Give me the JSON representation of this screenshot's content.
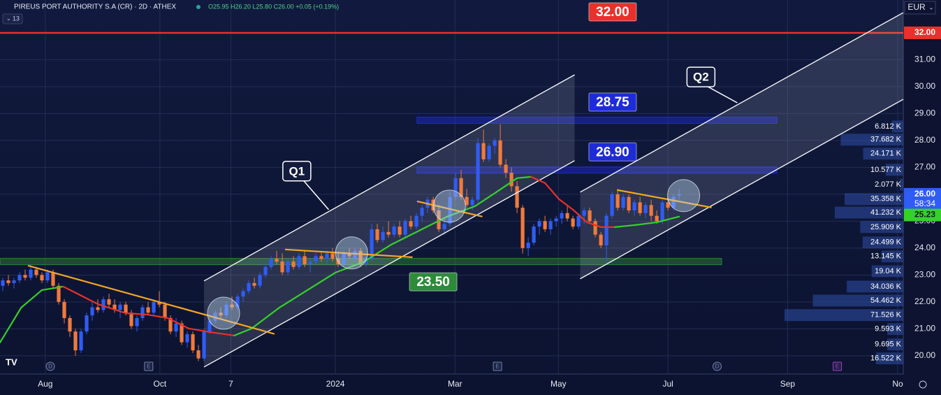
{
  "chart_data": {
    "type": "candlestick",
    "title": "PIREUS PORT AUTHORITY S.A (CR) · 2D · ATHEX",
    "ohlc_text": "O25.95 H26.20 L25.80 C26.00 +0.05 (+0.19%)",
    "indicator_count": "13",
    "currency": "EUR",
    "up_color": "#2f5cf5",
    "down_color": "#f07a3c",
    "grid": true,
    "xlim": [
      -0.5,
      161.1
    ],
    "xticks": [
      {
        "value": 7.6,
        "label": "Aug"
      },
      {
        "value": 28.1,
        "label": "Oct"
      },
      {
        "value": 40.8,
        "label": "7"
      },
      {
        "value": 59.5,
        "label": "2024"
      },
      {
        "value": 80.9,
        "label": "Mar"
      },
      {
        "value": 99.4,
        "label": "May"
      },
      {
        "value": 119,
        "label": "Jul"
      },
      {
        "value": 140.4,
        "label": "Sep"
      },
      {
        "value": 160.1,
        "label": "No"
      }
    ],
    "ylim": [
      19.32,
      33.22
    ],
    "yticks": [
      {
        "value": 20,
        "label": "20.00"
      },
      {
        "value": 21,
        "label": "21.00"
      },
      {
        "value": 22,
        "label": "22.00"
      },
      {
        "value": 23,
        "label": "23.00"
      },
      {
        "value": 24,
        "label": "24.00"
      },
      {
        "value": 25,
        "label": "25.00"
      },
      {
        "value": 26,
        "label": "26.00"
      },
      {
        "value": 27,
        "label": "27.00"
      },
      {
        "value": 28,
        "label": "28.00"
      },
      {
        "value": 29,
        "label": "29.00"
      },
      {
        "value": 30,
        "label": "30.00"
      },
      {
        "value": 31,
        "label": "31.00"
      },
      {
        "value": 32,
        "label": "32.00"
      }
    ],
    "candles": [
      [
        22.6,
        22.9,
        22.4,
        22.8
      ],
      [
        22.8,
        23.0,
        22.6,
        22.7
      ],
      [
        22.7,
        22.9,
        22.5,
        22.8
      ],
      [
        22.8,
        23.1,
        22.7,
        23.0
      ],
      [
        23.0,
        23.2,
        22.8,
        22.9
      ],
      [
        22.9,
        23.4,
        22.8,
        23.2
      ],
      [
        23.2,
        23.3,
        22.9,
        23.0
      ],
      [
        23.0,
        23.1,
        22.7,
        22.8
      ],
      [
        22.8,
        23.2,
        22.7,
        23.1
      ],
      [
        23.1,
        23.2,
        22.5,
        22.6
      ],
      [
        22.6,
        22.7,
        21.9,
        22.0
      ],
      [
        22.0,
        22.1,
        21.2,
        21.4
      ],
      [
        21.4,
        21.5,
        20.7,
        20.9
      ],
      [
        20.9,
        21.0,
        20.0,
        20.2
      ],
      [
        20.2,
        21.0,
        20.1,
        20.9
      ],
      [
        20.9,
        21.6,
        20.8,
        21.5
      ],
      [
        21.5,
        22.0,
        21.3,
        21.8
      ],
      [
        21.8,
        22.1,
        21.6,
        21.7
      ],
      [
        21.7,
        22.2,
        21.6,
        22.1
      ],
      [
        22.1,
        22.3,
        21.8,
        21.9
      ],
      [
        21.9,
        22.1,
        21.6,
        21.7
      ],
      [
        21.7,
        22.0,
        21.4,
        21.9
      ],
      [
        21.9,
        22.0,
        21.5,
        21.6
      ],
      [
        21.6,
        21.7,
        21.0,
        21.1
      ],
      [
        21.1,
        21.5,
        20.9,
        21.4
      ],
      [
        21.4,
        21.9,
        21.3,
        21.8
      ],
      [
        21.8,
        22.0,
        21.5,
        21.6
      ],
      [
        21.6,
        22.1,
        21.5,
        22.0
      ],
      [
        22.0,
        22.4,
        21.8,
        21.9
      ],
      [
        21.9,
        22.0,
        21.3,
        21.4
      ],
      [
        21.4,
        21.5,
        20.8,
        20.9
      ],
      [
        20.9,
        21.4,
        20.7,
        21.2
      ],
      [
        21.2,
        21.3,
        20.4,
        20.5
      ],
      [
        20.5,
        20.9,
        20.3,
        20.8
      ],
      [
        20.8,
        20.9,
        20.1,
        20.2
      ],
      [
        20.2,
        20.4,
        19.8,
        19.9
      ],
      [
        19.9,
        21.0,
        19.8,
        20.9
      ],
      [
        20.9,
        21.5,
        20.8,
        21.3
      ],
      [
        21.3,
        21.7,
        21.2,
        21.6
      ],
      [
        21.6,
        21.8,
        21.4,
        21.5
      ],
      [
        21.5,
        22.0,
        21.4,
        21.9
      ],
      [
        21.9,
        22.2,
        21.7,
        21.8
      ],
      [
        21.8,
        22.3,
        21.7,
        22.2
      ],
      [
        22.2,
        22.5,
        22.0,
        22.4
      ],
      [
        22.4,
        22.8,
        22.3,
        22.7
      ],
      [
        22.7,
        22.9,
        22.5,
        22.6
      ],
      [
        22.6,
        23.1,
        22.5,
        23.0
      ],
      [
        23.0,
        23.4,
        22.9,
        23.3
      ],
      [
        23.3,
        23.7,
        23.2,
        23.6
      ],
      [
        23.6,
        23.9,
        23.4,
        23.5
      ],
      [
        23.5,
        23.8,
        23.0,
        23.1
      ],
      [
        23.1,
        23.6,
        23.0,
        23.5
      ],
      [
        23.5,
        23.7,
        23.2,
        23.3
      ],
      [
        23.3,
        23.8,
        23.2,
        23.7
      ],
      [
        23.7,
        23.9,
        23.3,
        23.4
      ],
      [
        23.4,
        23.6,
        23.1,
        23.5
      ],
      [
        23.5,
        23.8,
        23.4,
        23.7
      ],
      [
        23.7,
        23.9,
        23.5,
        23.6
      ],
      [
        23.6,
        23.9,
        23.4,
        23.8
      ],
      [
        23.8,
        24.0,
        23.5,
        23.6
      ],
      [
        23.6,
        23.8,
        23.3,
        23.4
      ],
      [
        23.4,
        23.9,
        23.3,
        23.8
      ],
      [
        23.8,
        24.0,
        23.6,
        23.7
      ],
      [
        23.6,
        24.0,
        23.5,
        23.9
      ],
      [
        23.9,
        24.0,
        23.3,
        23.4
      ],
      [
        23.4,
        23.7,
        23.3,
        23.6
      ],
      [
        23.6,
        24.9,
        23.5,
        24.7
      ],
      [
        24.7,
        24.9,
        24.2,
        24.3
      ],
      [
        24.3,
        24.8,
        24.2,
        24.6
      ],
      [
        24.6,
        25.0,
        24.4,
        24.5
      ],
      [
        24.5,
        24.9,
        24.4,
        24.8
      ],
      [
        24.8,
        25.0,
        24.4,
        24.5
      ],
      [
        24.5,
        25.1,
        24.4,
        25.0
      ],
      [
        25.0,
        25.2,
        24.7,
        24.8
      ],
      [
        24.8,
        25.3,
        24.7,
        25.2
      ],
      [
        25.2,
        25.6,
        25.0,
        25.5
      ],
      [
        25.5,
        25.9,
        25.3,
        25.8
      ],
      [
        25.8,
        25.9,
        25.3,
        25.4
      ],
      [
        25.4,
        25.6,
        24.6,
        24.7
      ],
      [
        24.7,
        25.1,
        24.5,
        24.9
      ],
      [
        24.9,
        26.1,
        24.8,
        25.9
      ],
      [
        25.9,
        26.8,
        25.8,
        26.6
      ],
      [
        26.6,
        26.9,
        25.8,
        25.9
      ],
      [
        25.9,
        26.2,
        25.5,
        25.6
      ],
      [
        25.6,
        25.9,
        25.4,
        25.8
      ],
      [
        25.8,
        28.1,
        25.7,
        27.9
      ],
      [
        27.9,
        28.4,
        27.2,
        27.3
      ],
      [
        27.3,
        27.9,
        27.2,
        27.8
      ],
      [
        27.8,
        28.1,
        27.5,
        28.0
      ],
      [
        28.0,
        28.6,
        27.0,
        27.1
      ],
      [
        27.1,
        27.3,
        26.6,
        26.8
      ],
      [
        26.8,
        27.0,
        26.1,
        26.3
      ],
      [
        26.3,
        26.5,
        25.3,
        25.5
      ],
      [
        25.5,
        25.6,
        23.8,
        24.0
      ],
      [
        24.0,
        24.4,
        23.7,
        24.2
      ],
      [
        24.2,
        24.9,
        24.1,
        24.8
      ],
      [
        24.8,
        25.1,
        24.5,
        25.0
      ],
      [
        25.0,
        25.2,
        24.6,
        24.7
      ],
      [
        24.7,
        25.1,
        24.5,
        25.0
      ],
      [
        25.0,
        25.2,
        24.8,
        25.1
      ],
      [
        25.1,
        25.4,
        24.9,
        25.3
      ],
      [
        25.3,
        25.6,
        25.0,
        25.1
      ],
      [
        25.1,
        25.2,
        24.7,
        24.8
      ],
      [
        24.8,
        25.3,
        24.7,
        25.2
      ],
      [
        25.2,
        25.5,
        24.9,
        25.4
      ],
      [
        25.4,
        25.5,
        24.9,
        25.0
      ],
      [
        25.0,
        25.1,
        24.4,
        24.5
      ],
      [
        24.5,
        24.6,
        24.0,
        24.1
      ],
      [
        24.1,
        25.3,
        23.5,
        25.2
      ],
      [
        25.2,
        26.1,
        25.1,
        26.0
      ],
      [
        26.0,
        26.2,
        25.4,
        25.5
      ],
      [
        25.5,
        26.0,
        25.4,
        25.9
      ],
      [
        25.9,
        26.0,
        25.3,
        25.4
      ],
      [
        25.4,
        25.8,
        25.2,
        25.7
      ],
      [
        25.7,
        25.9,
        25.2,
        25.3
      ],
      [
        25.3,
        25.7,
        25.1,
        25.6
      ],
      [
        25.6,
        25.8,
        25.0,
        25.2
      ],
      [
        25.2,
        25.4,
        24.9,
        25.0
      ],
      [
        25.0,
        25.8,
        24.9,
        25.7
      ],
      [
        25.7,
        25.9,
        25.4,
        25.5
      ],
      [
        25.5,
        26.0,
        25.4,
        25.9
      ],
      [
        25.95,
        26.2,
        25.8,
        26.0
      ]
    ],
    "moving_average": {
      "up_color": "#35d12a",
      "down_color": "#e8312b",
      "x": [
        -0.5,
        3.3,
        7,
        10.8,
        13.3,
        17,
        22,
        25.8,
        29.5,
        33.3,
        37,
        41.4,
        44.5,
        49.5,
        54.5,
        59.5,
        64.5,
        69.5,
        74.5,
        79.5,
        84.5,
        88.3,
        92,
        94.5,
        97,
        99.5,
        102,
        104.5,
        107,
        109.5,
        113.3,
        117,
        121
      ],
      "values": [
        20.49,
        21.79,
        22.44,
        22.57,
        22.31,
        21.92,
        21.58,
        21.53,
        21.4,
        21.01,
        20.88,
        20.75,
        21.01,
        21.79,
        22.44,
        23.09,
        23.48,
        24.13,
        24.65,
        25.17,
        25.56,
        26.08,
        26.6,
        26.65,
        26.42,
        25.82,
        25.43,
        24.96,
        24.78,
        24.78,
        24.86,
        24.96,
        25.17
      ]
    },
    "levels": [
      {
        "value": 32,
        "label": "32.00",
        "color": "#e8312b",
        "style": "line",
        "label_x": 109.1
      },
      {
        "value": 28.75,
        "label": "28.75",
        "color": "#1e2bd9",
        "style": "band",
        "x": [
          74.1,
          138.5
        ],
        "label_x": 109.1
      },
      {
        "value": 26.9,
        "label": "26.90",
        "color": "#1e2bd9",
        "style": "band",
        "x": [
          74.1,
          138.5
        ],
        "label_x": 109.1
      },
      {
        "value": 23.5,
        "label": "23.50",
        "color": "#2e8b3a",
        "style": "band",
        "x": [
          -0.5,
          128.6
        ],
        "label_x": 77
      }
    ],
    "channels": [
      {
        "lower": {
          "x": [
            36,
            102.3
          ],
          "values": [
            19.58,
            27.25
          ]
        },
        "upper": {
          "x": [
            36,
            102.3
          ],
          "values": [
            22.78,
            30.44
          ]
        }
      },
      {
        "lower": {
          "x": [
            103.3,
            161.1
          ],
          "values": [
            22.86,
            29.53
          ]
        },
        "upper": {
          "x": [
            103.3,
            161.1
          ],
          "values": [
            26.08,
            32.75
          ]
        }
      }
    ],
    "trendlines": {
      "color": "#f5a623",
      "lines": [
        {
          "x": [
            4.5,
            48.6
          ],
          "values": [
            23.35,
            20.81
          ]
        },
        {
          "x": [
            50.5,
            73.3
          ],
          "values": [
            23.95,
            23.66
          ]
        },
        {
          "x": [
            74.1,
            85.8
          ],
          "values": [
            25.74,
            25.17
          ]
        },
        {
          "x": [
            109.9,
            126.8
          ],
          "values": [
            26.16,
            25.51
          ]
        }
      ]
    },
    "circles": {
      "x": [
        39.5,
        62.4,
        79.9,
        121.8
      ],
      "values": [
        21.58,
        23.82,
        25.56,
        25.95
      ]
    },
    "callouts": [
      {
        "text": "Q1",
        "x": 52.6,
        "y": 26.86,
        "point_x": 58.3,
        "point_y": 25.43
      },
      {
        "text": "Q2",
        "x": 124.9,
        "y": 30.36,
        "point_x": 131.4,
        "point_y": 29.4
      }
    ],
    "volume_profile": {
      "color": "#2f4fa8",
      "levels": [
        28.52,
        28.03,
        27.51,
        26.91,
        26.36,
        25.82,
        25.32,
        24.78,
        24.21,
        23.69,
        23.14,
        22.57,
        22.05,
        21.51,
        20.99,
        20.42,
        19.9
      ],
      "values": [
        6.812,
        37.682,
        24.171,
        10.577,
        2.077,
        35.358,
        41.232,
        25.909,
        24.499,
        13.145,
        19.04,
        34.036,
        54.462,
        71.526,
        9.593,
        9.695,
        16.522
      ],
      "value_labels": [
        "6.812 K",
        "37.682 K",
        "24.171 K",
        "10.577 K",
        "2.077 K",
        "35.358 K",
        "41.232 K",
        "25.909 K",
        "24.499 K",
        "13.145 K",
        "19.04 K",
        "34.036 K",
        "54.462 K",
        "71.526 K",
        "9.593 K",
        "9.695 K",
        "16.522 K"
      ]
    },
    "price_tags": [
      {
        "value": 32,
        "label": "32.00",
        "color": "#e8312b",
        "text_color": "#ffffff"
      },
      {
        "value": 26,
        "label": "26.00",
        "sub": "58:34",
        "color": "#2f5cf5",
        "text_color": "#ffffff"
      },
      {
        "value": 25.23,
        "label": "25.23",
        "color": "#35d12a",
        "text_color": "#0e1533"
      }
    ],
    "events": [
      {
        "label": "D",
        "x": 8.5,
        "color": "#7a84a8"
      },
      {
        "label": "E",
        "x": 26.1,
        "color": "#7a84a8"
      },
      {
        "label": "E",
        "x": 88.5,
        "color": "#7a84a8"
      },
      {
        "label": "D",
        "x": 127.8,
        "color": "#7a84a8"
      },
      {
        "label": "E",
        "x": 149.3,
        "color": "#b03ac0"
      }
    ]
  }
}
